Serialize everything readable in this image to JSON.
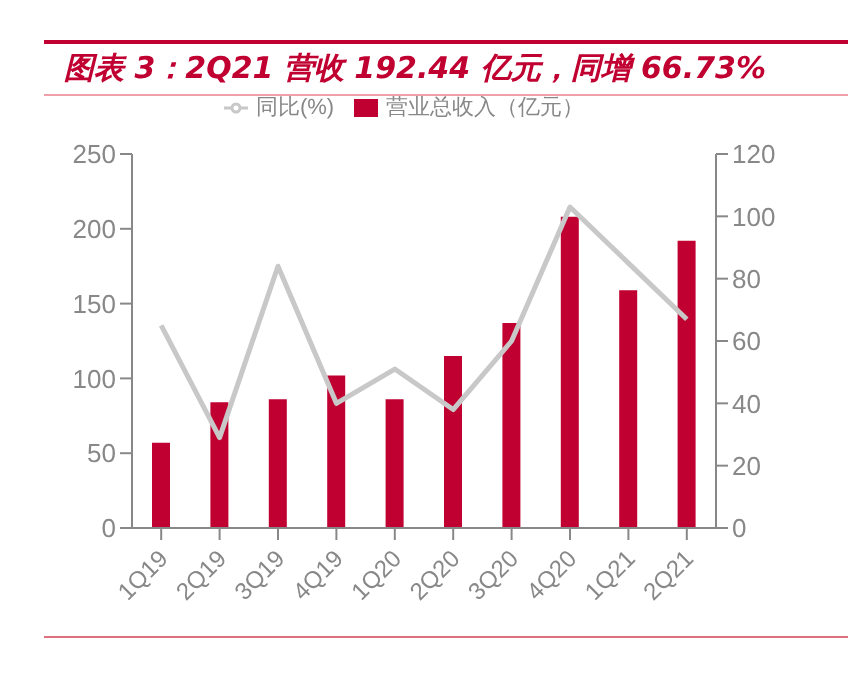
{
  "chart_data": {
    "type": "bar",
    "title": "图表 3：2Q21 营收 192.44 亿元，同增 66.73%",
    "categories": [
      "1Q19",
      "2Q19",
      "3Q19",
      "4Q19",
      "1Q20",
      "2Q20",
      "3Q20",
      "4Q20",
      "1Q21",
      "2Q21"
    ],
    "series": [
      {
        "name": "营业总收入（亿元）",
        "color": "#c00031",
        "values": [
          57,
          84,
          86,
          102,
          86,
          115,
          137,
          208,
          159,
          192
        ]
      },
      {
        "name": "同比(%)",
        "type": "line",
        "axis": "y2",
        "color": "#c8c8c8",
        "values": [
          65,
          29,
          84,
          40,
          51,
          38,
          60,
          103,
          85,
          67
        ]
      }
    ],
    "ylim": [
      0,
      250
    ],
    "yticks": [
      0,
      50,
      100,
      150,
      200,
      250
    ],
    "y2lim": [
      0,
      120
    ],
    "y2ticks": [
      0,
      20,
      40,
      60,
      80,
      100,
      120
    ],
    "grid": false,
    "legend": "top",
    "marker": "none"
  }
}
